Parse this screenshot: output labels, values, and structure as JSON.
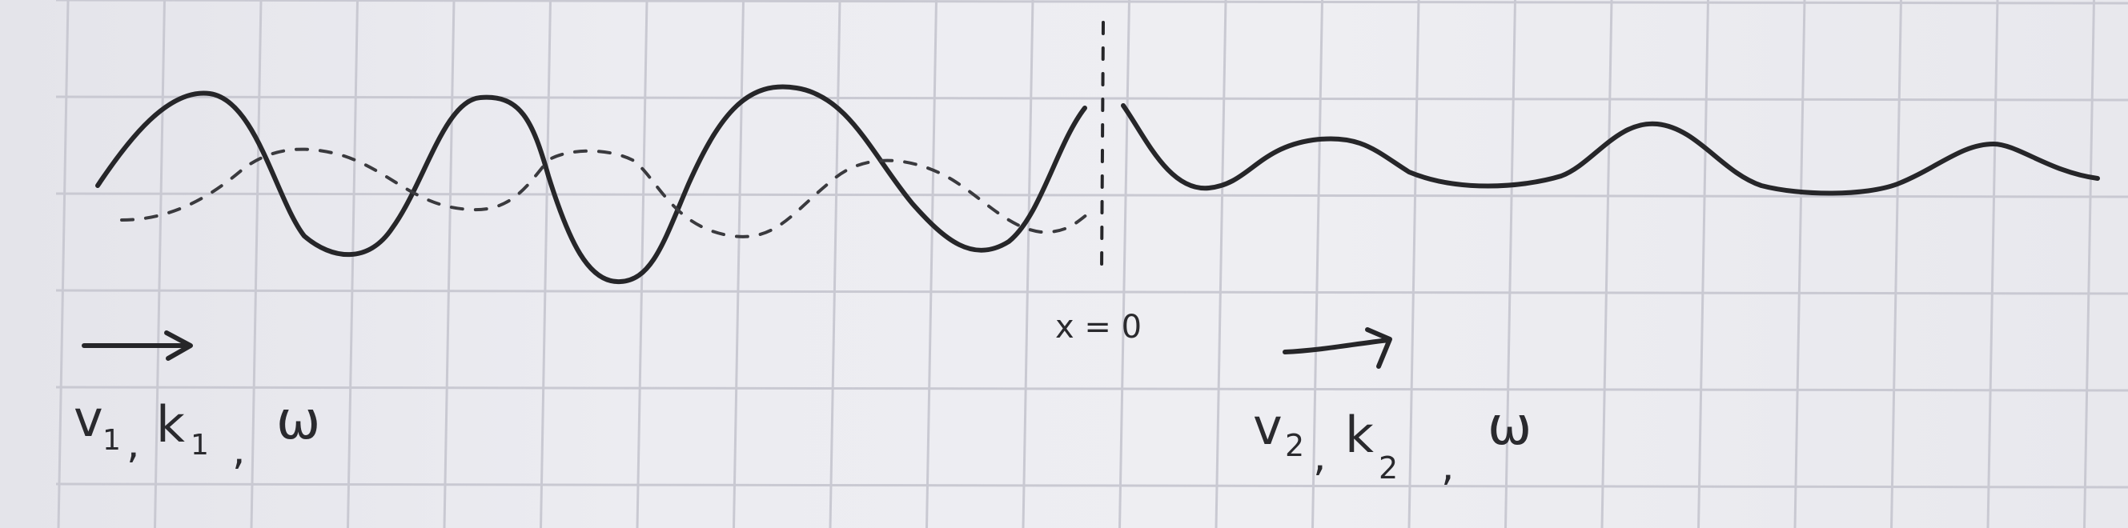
{
  "colors": {
    "paper": "#ececf1",
    "grid": "#c9c9d2",
    "ink": "#262629",
    "pencil": "#3a3a3e"
  },
  "labels": {
    "boundary": "x = 0",
    "medium1_velocity": "v",
    "medium1_velocity_sub": "1",
    "medium1_wavenumber": "k",
    "medium1_wavenumber_sub": "1",
    "medium1_frequency": "ω",
    "medium2_velocity": "v",
    "medium2_velocity_sub": "2",
    "medium2_wavenumber": "k",
    "medium2_wavenumber_sub": "2",
    "medium2_frequency": "ω"
  },
  "icons": {
    "incident_arrow": "arrow-right-icon",
    "transmitted_arrow": "arrow-right-icon"
  }
}
